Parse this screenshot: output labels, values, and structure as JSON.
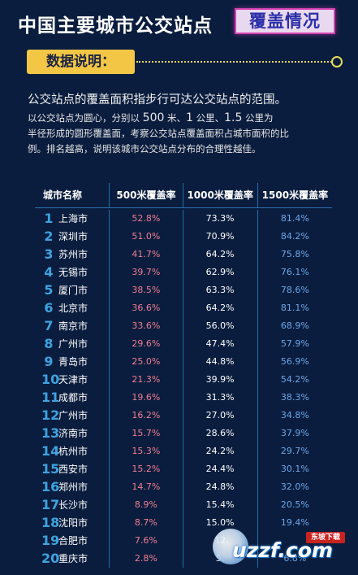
{
  "header": {
    "title_main": "中国主要城市公交站点",
    "title_highlight": "覆盖情况"
  },
  "section": {
    "label": "数据说明："
  },
  "description": {
    "line1": "公交站点的覆盖面积指步行可达公交站点的范围。",
    "line2_parts": [
      "以公交站点为圆心，分别以 ",
      "500",
      " 米、",
      "1",
      " 公里、",
      "1.5",
      " 公里为"
    ],
    "line3": "半径形成的圆形覆盖面，考察公交站点覆盖面积占城市面积的比",
    "line4": "例。排名越高，说明该城市公交站点分布的合理性越佳。"
  },
  "table": {
    "headers": [
      "城市名称",
      "500米覆盖率",
      "1000米覆盖率",
      "1500米覆盖率"
    ],
    "rows": [
      {
        "rank": "1",
        "city": "上海市",
        "r500": "52.8%",
        "r1000": "73.3%",
        "r1500": "81.4%"
      },
      {
        "rank": "2",
        "city": "深圳市",
        "r500": "51.0%",
        "r1000": "70.9%",
        "r1500": "84.2%"
      },
      {
        "rank": "3",
        "city": "苏州市",
        "r500": "41.7%",
        "r1000": "64.2%",
        "r1500": "75.8%"
      },
      {
        "rank": "4",
        "city": "无锡市",
        "r500": "39.7%",
        "r1000": "62.9%",
        "r1500": "76.1%"
      },
      {
        "rank": "5",
        "city": "厦门市",
        "r500": "38.5%",
        "r1000": "63.3%",
        "r1500": "78.6%"
      },
      {
        "rank": "6",
        "city": "北京市",
        "r500": "36.6%",
        "r1000": "64.2%",
        "r1500": "81.1%"
      },
      {
        "rank": "7",
        "city": "南京市",
        "r500": "33.6%",
        "r1000": "56.0%",
        "r1500": "68.9%"
      },
      {
        "rank": "8",
        "city": "广州市",
        "r500": "29.6%",
        "r1000": "47.4%",
        "r1500": "57.9%"
      },
      {
        "rank": "9",
        "city": "青岛市",
        "r500": "25.0%",
        "r1000": "44.8%",
        "r1500": "56.9%"
      },
      {
        "rank": "10",
        "city": "天津市",
        "r500": "21.3%",
        "r1000": "39.9%",
        "r1500": "54.2%"
      },
      {
        "rank": "11",
        "city": "成都市",
        "r500": "19.6%",
        "r1000": "31.3%",
        "r1500": "38.3%"
      },
      {
        "rank": "12",
        "city": "广州市",
        "r500": "16.2%",
        "r1000": "27.0%",
        "r1500": "34.8%"
      },
      {
        "rank": "13",
        "city": "济南市",
        "r500": "15.7%",
        "r1000": "28.6%",
        "r1500": "37.9%"
      },
      {
        "rank": "14",
        "city": "杭州市",
        "r500": "15.3%",
        "r1000": "24.2%",
        "r1500": "29.7%"
      },
      {
        "rank": "15",
        "city": "西安市",
        "r500": "15.2%",
        "r1000": "24.4%",
        "r1500": "30.1%"
      },
      {
        "rank": "16",
        "city": "郑州市",
        "r500": "14.7%",
        "r1000": "24.8%",
        "r1500": "32.0%"
      },
      {
        "rank": "17",
        "city": "长沙市",
        "r500": "8.9%",
        "r1000": "15.4%",
        "r1500": "20.5%"
      },
      {
        "rank": "18",
        "city": "沈阳市",
        "r500": "8.7%",
        "r1000": "15.0%",
        "r1500": "19.4%"
      },
      {
        "rank": "19",
        "city": "合肥市",
        "r500": "7.6%",
        "r1000": "12",
        "r1500": ""
      },
      {
        "rank": "20",
        "city": "重庆市",
        "r500": "2.8%",
        "r1000": "5.",
        "r1500": "6.8%"
      }
    ]
  },
  "watermark": {
    "text": "uzzf.com",
    "badge": "东坡下载"
  },
  "colors": {
    "background": "#0a1d3e",
    "accent_yellow": "#f3c646",
    "rank_blue": "#3ea3e0",
    "rate500": "#f07f91",
    "rate1500": "#6ca7e8",
    "highlight_border": "#d33fb0"
  }
}
